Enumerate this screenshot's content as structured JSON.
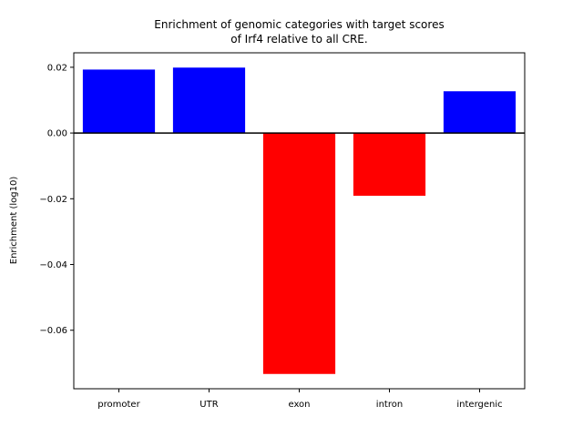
{
  "chart_data": {
    "type": "bar",
    "title_lines": [
      "Enrichment of genomic categories with target scores",
      "of Irf4 relative to all CRE."
    ],
    "xlabel": "",
    "ylabel": "Enrichment (log10)",
    "categories": [
      "promoter",
      "UTR",
      "exon",
      "intron",
      "intergenic"
    ],
    "values": [
      0.0193,
      0.0199,
      -0.0733,
      -0.0191,
      0.0127
    ],
    "colors": [
      "#0000ff",
      "#0000ff",
      "#ff0000",
      "#ff0000",
      "#0000ff"
    ],
    "ylim": [
      -0.0778,
      0.0244
    ],
    "yticks": [
      0.02,
      0.0,
      -0.02,
      -0.04,
      -0.06
    ],
    "ytick_labels": [
      "0.02",
      "0.00",
      "−0.02",
      "−0.04",
      "−0.06"
    ],
    "zero_line": true,
    "grid": false,
    "legend": "none"
  }
}
